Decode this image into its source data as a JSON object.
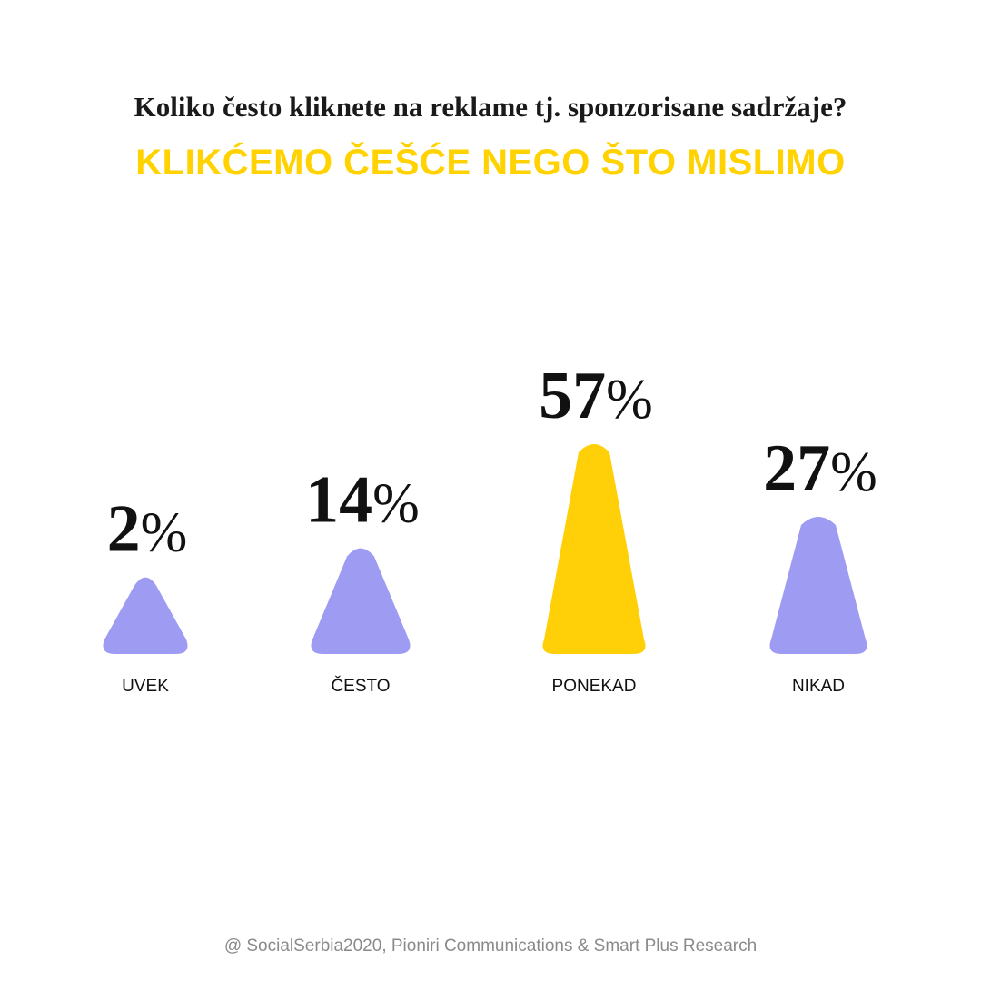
{
  "question": "Koliko često kliknete na reklame tj. sponzorisane sadržaje?",
  "headline": "KLIKĆEMO ČEŠĆE NEGO ŠTO MISLIMO",
  "footer": "@ SocialSerbia2020, Pioniri Communications & Smart Plus Research",
  "colors": {
    "default": "#9E9CF2",
    "highlight": "#FFD008",
    "headline": "#FFD200"
  },
  "chart_data": {
    "type": "bar",
    "categories": [
      "UVEK",
      "ČESTO",
      "PONEKAD",
      "NIKAD"
    ],
    "values": [
      2,
      14,
      57,
      27
    ],
    "value_labels": [
      "2%",
      "14%",
      "57%",
      "27%"
    ],
    "highlight_index": 2,
    "ylim": [
      0,
      57
    ],
    "grid": false,
    "legend": "none"
  }
}
